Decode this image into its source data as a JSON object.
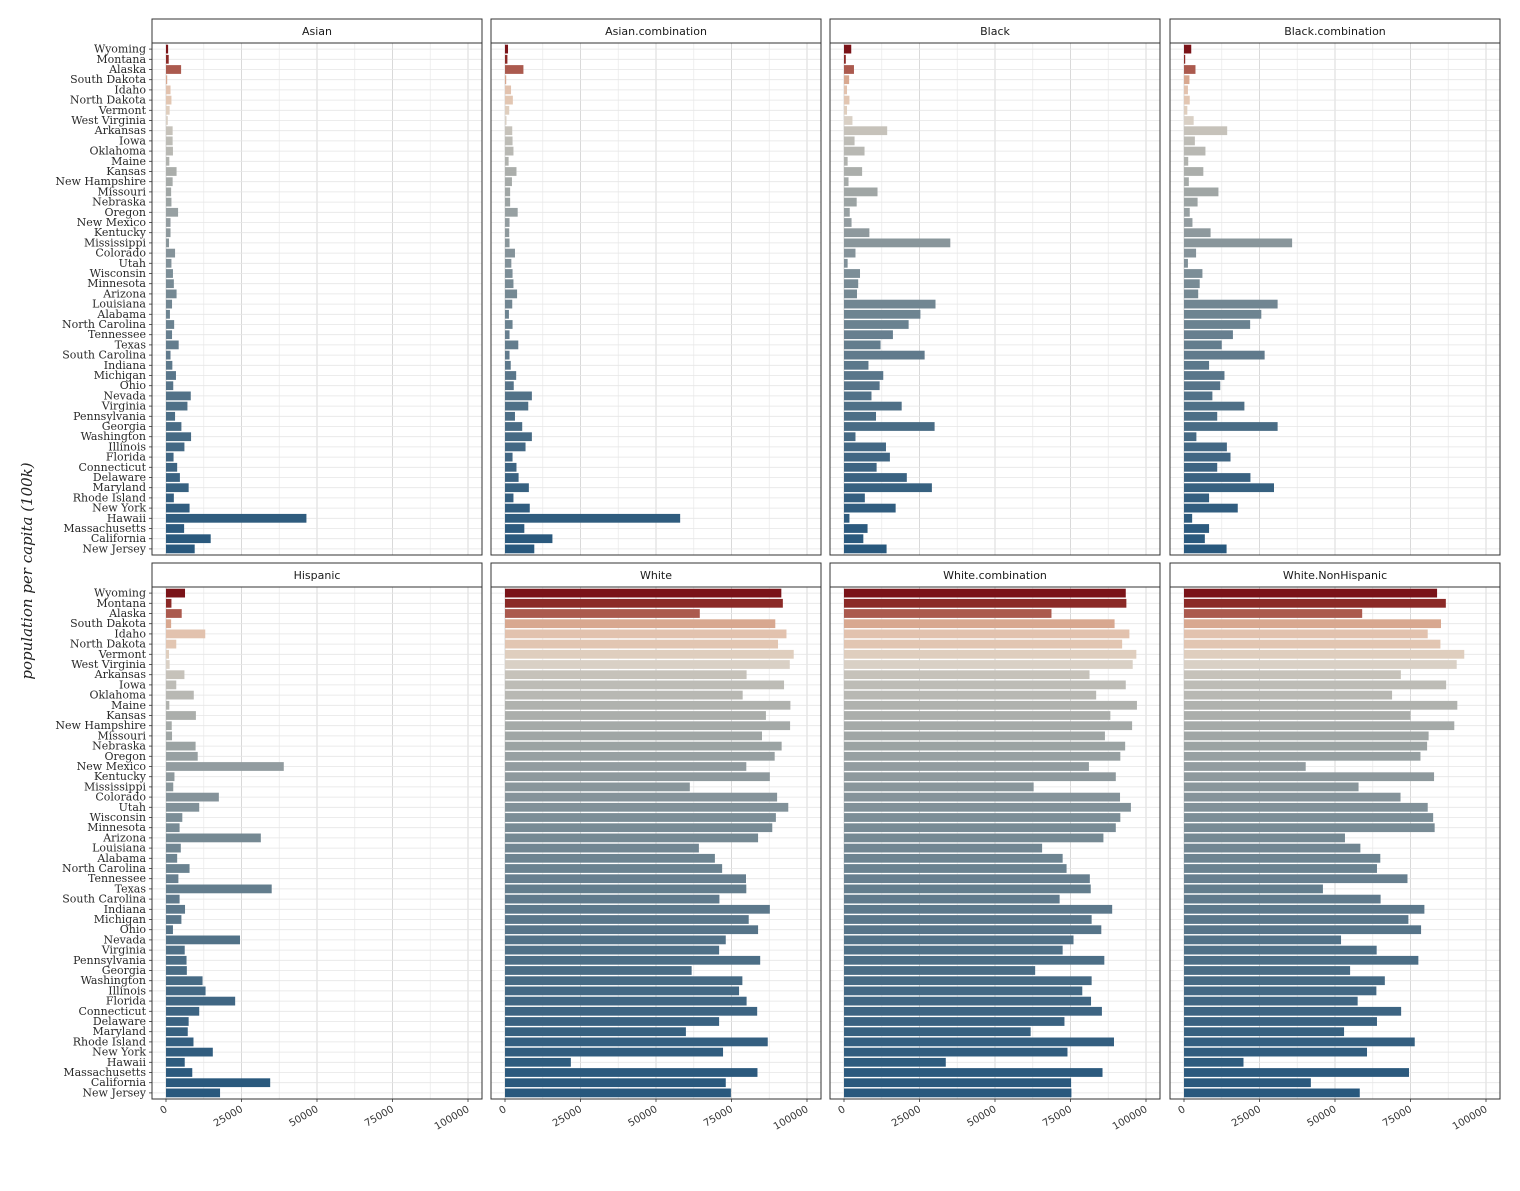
{
  "chart_data": {
    "type": "bar",
    "orientation": "horizontal",
    "ylabel": "population per capita (100k)",
    "xlabel": "",
    "xlim": [
      0,
      100000
    ],
    "x_ticks": [
      0,
      25000,
      50000,
      75000,
      100000
    ],
    "x_tick_labels": [
      "0",
      "25000",
      "50000",
      "75000",
      "100000"
    ],
    "grid": true,
    "categories": [
      "Wyoming",
      "Montana",
      "Alaska",
      "South Dakota",
      "Idaho",
      "North Dakota",
      "Vermont",
      "West Virginia",
      "Arkansas",
      "Iowa",
      "Oklahoma",
      "Maine",
      "Kansas",
      "New Hampshire",
      "Missouri",
      "Nebraska",
      "Oregon",
      "New Mexico",
      "Kentucky",
      "Mississippi",
      "Colorado",
      "Utah",
      "Wisconsin",
      "Minnesota",
      "Arizona",
      "Louisiana",
      "Alabama",
      "North Carolina",
      "Tennessee",
      "Texas",
      "South Carolina",
      "Indiana",
      "Michigan",
      "Ohio",
      "Nevada",
      "Virginia",
      "Pennsylvania",
      "Georgia",
      "Washington",
      "Illinois",
      "Florida",
      "Connecticut",
      "Delaware",
      "Maryland",
      "Rhode Island",
      "New York",
      "Hawaii",
      "Massachusetts",
      "California",
      "New Jersey"
    ],
    "category_colors": [
      "#7a1318",
      "#8b2a27",
      "#ab5a4e",
      "#d8a890",
      "#e2c2ae",
      "#e2c6b2",
      "#dfcebe",
      "#d9d0c5",
      "#c6c2ba",
      "#bdbcb6",
      "#b8b8b3",
      "#b0b2ae",
      "#abaeab",
      "#a5aaa8",
      "#a0a6a5",
      "#9ba3a3",
      "#97a0a2",
      "#929ca0",
      "#8e999d",
      "#89969b",
      "#85939a",
      "#819199",
      "#7c8e97",
      "#788b95",
      "#758993",
      "#718692",
      "#6d8491",
      "#6a8290",
      "#677f8f",
      "#637d8d",
      "#607a8c",
      "#5c788b",
      "#59768a",
      "#567489",
      "#527288",
      "#4f7087",
      "#4c6e86",
      "#496c85",
      "#466a84",
      "#436884",
      "#406683",
      "#3d6482",
      "#3a6281",
      "#376180",
      "#345f80",
      "#315d7f",
      "#2f5c7e",
      "#2c5a7e",
      "#2a597d",
      "#28587d"
    ],
    "series": [
      {
        "name": "Asian",
        "values": [
          700,
          900,
          5000,
          400,
          1500,
          1800,
          1200,
          600,
          2200,
          2200,
          2300,
          1100,
          3500,
          2200,
          1700,
          1800,
          4000,
          1500,
          1500,
          1000,
          3000,
          1800,
          2300,
          2600,
          3500,
          2000,
          1300,
          2700,
          2000,
          4200,
          1500,
          2100,
          3300,
          2400,
          8200,
          7100,
          3000,
          5100,
          8300,
          6100,
          2500,
          3700,
          4600,
          7500,
          2600,
          7800,
          46500,
          6000,
          14800,
          9500
        ]
      },
      {
        "name": "Asian.combination",
        "values": [
          1000,
          800,
          6100,
          400,
          2000,
          2600,
          1400,
          500,
          2400,
          2500,
          2800,
          1200,
          3800,
          2300,
          1700,
          1700,
          4200,
          1500,
          1400,
          1500,
          3300,
          2100,
          2500,
          2800,
          4000,
          2400,
          1300,
          2500,
          1500,
          4400,
          1500,
          1900,
          3700,
          2900,
          8900,
          7700,
          3300,
          5700,
          8900,
          6800,
          2500,
          3800,
          4500,
          7900,
          2800,
          8200,
          58000,
          6400,
          15700,
          9700
        ]
      },
      {
        "name": "Black",
        "values": [
          2400,
          600,
          3300,
          1700,
          1000,
          1800,
          1000,
          2800,
          14300,
          3500,
          6800,
          1200,
          6000,
          1500,
          11100,
          4200,
          1900,
          2500,
          8400,
          35200,
          3800,
          1200,
          5300,
          4700,
          4300,
          30300,
          25300,
          21400,
          16200,
          12100,
          26700,
          8100,
          13000,
          11800,
          9100,
          19100,
          10600,
          30000,
          3800,
          13900,
          15200,
          10800,
          20800,
          29100,
          6900,
          17100,
          1800,
          7800,
          6400,
          14100
        ]
      },
      {
        "name": "Black.combination",
        "values": [
          2400,
          400,
          3800,
          1800,
          1300,
          1900,
          1100,
          3200,
          14300,
          3600,
          7100,
          1400,
          6400,
          1600,
          11400,
          4500,
          1900,
          2800,
          8800,
          35800,
          4000,
          1300,
          6100,
          5200,
          4700,
          31000,
          25600,
          21900,
          16200,
          12500,
          26700,
          8300,
          13400,
          12000,
          9400,
          20000,
          11000,
          31000,
          4100,
          14200,
          15400,
          11000,
          22000,
          29800,
          8300,
          17800,
          2700,
          8300,
          6900,
          14100
        ]
      },
      {
        "name": "Hispanic",
        "values": [
          6300,
          1800,
          5200,
          1700,
          13000,
          3400,
          1000,
          1200,
          6100,
          3400,
          9200,
          1100,
          9900,
          1900,
          2000,
          9800,
          10500,
          39000,
          2800,
          2400,
          17500,
          11000,
          5400,
          4500,
          31400,
          4900,
          3700,
          7800,
          4100,
          35000,
          4500,
          6300,
          5100,
          2300,
          24500,
          6200,
          6800,
          6900,
          12100,
          13100,
          22900,
          11000,
          7500,
          7200,
          9100,
          15500,
          6200,
          8700,
          34500,
          17900
        ]
      },
      {
        "name": "White",
        "values": [
          91500,
          92000,
          64500,
          89500,
          93200,
          90400,
          95600,
          94300,
          80000,
          92400,
          78700,
          94500,
          86400,
          94400,
          85100,
          91600,
          89300,
          79900,
          87700,
          61200,
          90100,
          93800,
          89700,
          88500,
          83800,
          64200,
          69500,
          71900,
          79800,
          79900,
          71000,
          87700,
          80700,
          83800,
          73100,
          70900,
          84500,
          61800,
          78600,
          77500,
          80000,
          83500,
          70900,
          59900,
          87000,
          72200,
          21800,
          83600,
          73100,
          74800
        ]
      },
      {
        "name": "White.combination",
        "values": [
          93300,
          93500,
          68700,
          89600,
          94500,
          92100,
          96800,
          95600,
          81300,
          93300,
          83500,
          97000,
          88200,
          95400,
          86400,
          93100,
          91500,
          81100,
          90000,
          62800,
          91400,
          95000,
          91500,
          90000,
          85900,
          65600,
          72400,
          73700,
          81400,
          81700,
          71400,
          88800,
          82000,
          85200,
          76000,
          72400,
          86200,
          63300,
          82000,
          78900,
          81800,
          85400,
          73000,
          61800,
          89400,
          74000,
          33700,
          85600,
          75200,
          75300
        ]
      },
      {
        "name": "White.NonHispanic",
        "values": [
          83800,
          86700,
          59000,
          85100,
          80700,
          84900,
          92800,
          90300,
          71800,
          86800,
          68900,
          90500,
          75000,
          89500,
          81000,
          80500,
          78300,
          40300,
          82800,
          57800,
          71700,
          80700,
          82500,
          83000,
          53300,
          58400,
          65000,
          63900,
          74000,
          46000,
          65100,
          79600,
          74300,
          78500,
          52000,
          63800,
          77600,
          55000,
          66500,
          63700,
          57500,
          71900,
          63900,
          53000,
          76400,
          60600,
          19700,
          74500,
          42000,
          58200
        ]
      }
    ]
  }
}
